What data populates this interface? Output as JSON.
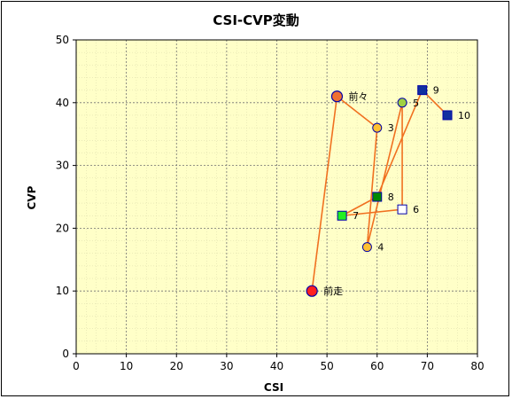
{
  "chart_data": {
    "type": "scatter",
    "title": "CSI-CVP変動",
    "xlabel": "CSI",
    "ylabel": "CVP",
    "xlim": [
      0,
      80
    ],
    "ylim": [
      0,
      50
    ],
    "xticks": [
      0,
      10,
      20,
      30,
      40,
      50,
      60,
      70,
      80
    ],
    "yticks": [
      0,
      10,
      20,
      30,
      40,
      50
    ],
    "grid": true,
    "plot_background": "#ffffc8",
    "line_color": "#f07020",
    "points": [
      {
        "label": "前走",
        "x": 47,
        "y": 10,
        "shape": "circle-large",
        "fill": "#ff2020",
        "stroke": "#0000aa"
      },
      {
        "label": "前々",
        "x": 52,
        "y": 41,
        "shape": "circle-large",
        "fill": "#f07030",
        "stroke": "#0000aa"
      },
      {
        "label": "3",
        "x": 60,
        "y": 36,
        "shape": "circle",
        "fill": "#ffc030",
        "stroke": "#0000aa"
      },
      {
        "label": "4",
        "x": 58,
        "y": 17,
        "shape": "circle",
        "fill": "#ffc030",
        "stroke": "#0000aa"
      },
      {
        "label": "5",
        "x": 65,
        "y": 40,
        "shape": "circle",
        "fill": "#a0d040",
        "stroke": "#0000aa"
      },
      {
        "label": "6",
        "x": 65,
        "y": 23,
        "shape": "square",
        "fill": "#ffffff",
        "stroke": "#0000aa"
      },
      {
        "label": "7",
        "x": 53,
        "y": 22,
        "shape": "square",
        "fill": "#20f020",
        "stroke": "#0000aa"
      },
      {
        "label": "8",
        "x": 60,
        "y": 25,
        "shape": "square",
        "fill": "#008800",
        "stroke": "#0000aa"
      },
      {
        "label": "9",
        "x": 69,
        "y": 42,
        "shape": "square",
        "fill": "#1030a0",
        "stroke": "#0000aa"
      },
      {
        "label": "10",
        "x": 74,
        "y": 38,
        "shape": "square",
        "fill": "#1030a0",
        "stroke": "#0000aa"
      }
    ]
  }
}
